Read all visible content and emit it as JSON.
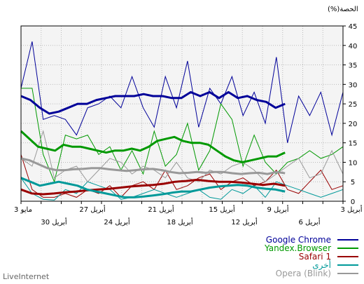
{
  "chart_data": {
    "type": "line",
    "title": "",
    "ylabel": "(%)الحصة",
    "ylim": [
      0,
      45
    ],
    "yticks": [
      0,
      5,
      10,
      15,
      20,
      25,
      30,
      35,
      40,
      45
    ],
    "grid": true,
    "legend_position": "bottom-right",
    "xtick_labels_top": [
      "3 مايو",
      "27 أبريل",
      "21 أبريل",
      "15 أبريل",
      "9 أبريل",
      "3 أبريل"
    ],
    "xtick_labels_bottom": [
      "30 أبريل",
      "24 أبريل",
      "18 أبريل",
      "12 أبريل",
      "6 أبريل"
    ],
    "series": [
      {
        "name": "Google Chrome",
        "color": "#000099",
        "raw": [
          29,
          41,
          21,
          22,
          21,
          17,
          24,
          25,
          27,
          24,
          32,
          24,
          19,
          32,
          24,
          36,
          19,
          29,
          25,
          32,
          22,
          28,
          20,
          37,
          15,
          27,
          22,
          28,
          17,
          28
        ],
        "smooth": [
          27,
          26,
          24,
          22.5,
          23,
          24,
          25,
          25,
          26,
          26.5,
          27,
          27,
          27,
          27.5,
          27,
          27,
          26.5,
          26.5,
          28,
          27,
          28,
          26.5,
          28,
          26.5,
          27,
          26,
          25.5,
          24,
          25
        ]
      },
      {
        "name": "Yandex.Browser",
        "color": "#009900",
        "raw": [
          29,
          29,
          12,
          5,
          17,
          16,
          17,
          12,
          14,
          8,
          13,
          7,
          18,
          9,
          12,
          20,
          8,
          13,
          25,
          21,
          9,
          17,
          10,
          7,
          10,
          11,
          13,
          11,
          12,
          14
        ],
        "smooth": [
          18,
          16,
          14,
          13.5,
          13,
          14.5,
          14,
          14,
          13.5,
          13,
          12.5,
          13,
          13,
          13.5,
          13,
          14,
          15.5,
          16,
          16.5,
          15.5,
          15,
          15,
          14.5,
          13,
          11.5,
          10.5,
          10,
          10.5,
          11,
          11.5,
          11.5,
          12.5
        ]
      },
      {
        "name": "Safari 1",
        "color": "#990000",
        "raw": [
          12,
          3,
          1,
          1,
          2,
          1,
          3,
          2,
          4,
          1,
          4,
          5,
          3,
          8,
          3,
          4,
          6,
          7,
          3,
          5,
          6,
          4,
          5,
          8,
          3,
          2,
          5,
          8,
          3,
          4
        ],
        "smooth": [
          3,
          2,
          1.8,
          2,
          2.3,
          2.5,
          2.8,
          3,
          3.2,
          3.5,
          3.8,
          4,
          4.2,
          4.5,
          5,
          5.2,
          5.5,
          5.2,
          5,
          5,
          4.8,
          4.5,
          4.2,
          4.5,
          4
        ]
      },
      {
        "name": "أخرى",
        "color": "#009999",
        "raw": [
          6,
          2,
          0.5,
          0.3,
          3,
          2,
          5,
          4,
          3,
          0.5,
          1,
          2,
          3,
          2,
          1,
          2,
          3,
          1,
          0.5,
          3,
          2,
          4,
          1,
          5,
          4,
          3,
          2,
          1,
          2,
          3
        ],
        "smooth": [
          6,
          5,
          4,
          4.5,
          5,
          4.5,
          4,
          3,
          2.5,
          2,
          1.5,
          1,
          1,
          1.2,
          1.5,
          1.8,
          2.2,
          2.5,
          2.5,
          3,
          3.5,
          3.8,
          4,
          4.2,
          4,
          3.5,
          3.2,
          3,
          2.5
        ]
      },
      {
        "name": "Opera (Blink)",
        "color": "#999999",
        "raw": [
          11,
          9,
          18,
          6,
          8,
          9,
          5,
          8,
          11,
          10,
          7,
          9,
          8,
          6,
          10,
          6,
          5,
          8,
          7,
          9,
          10,
          8,
          5,
          7,
          9,
          11,
          6,
          7,
          13,
          7
        ],
        "smooth": [
          11,
          10.5,
          9.5,
          8.5,
          8,
          8,
          8.2,
          8.3,
          8.5,
          8.5,
          8.2,
          8,
          7.8,
          8,
          8.2,
          8.3,
          8,
          7.5,
          7.2,
          7.3,
          7.5,
          7.3,
          7.5,
          7.5,
          7.2,
          7,
          7.2,
          7.3,
          7,
          7.5,
          7.2
        ]
      }
    ]
  },
  "watermark": "LiveInternet"
}
